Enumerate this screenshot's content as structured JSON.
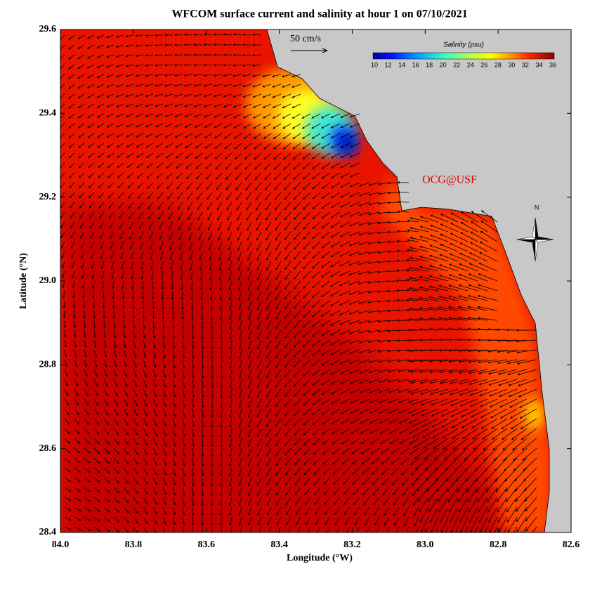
{
  "title": "WFCOM surface current and salinity at hour 1 on 07/10/2021",
  "x_axis": {
    "label": "Longitude (°W)",
    "ticks": [
      "84.0",
      "83.8",
      "83.6",
      "83.4",
      "83.2",
      "83.0",
      "82.8",
      "82.6"
    ]
  },
  "y_axis": {
    "label": "Latitude (°N)",
    "ticks": [
      "29.6",
      "29.4",
      "29.2",
      "29.0",
      "28.8",
      "28.6",
      "28.4"
    ]
  },
  "scale_arrow": "50 cm/s",
  "colorbar": {
    "title": "Salinity (psu)",
    "labels": [
      "10",
      "12",
      "14",
      "16",
      "18",
      "20",
      "22",
      "24",
      "26",
      "28",
      "30",
      "32",
      "34",
      "36"
    ]
  },
  "credit": "OCG@USF",
  "compass": "N"
}
